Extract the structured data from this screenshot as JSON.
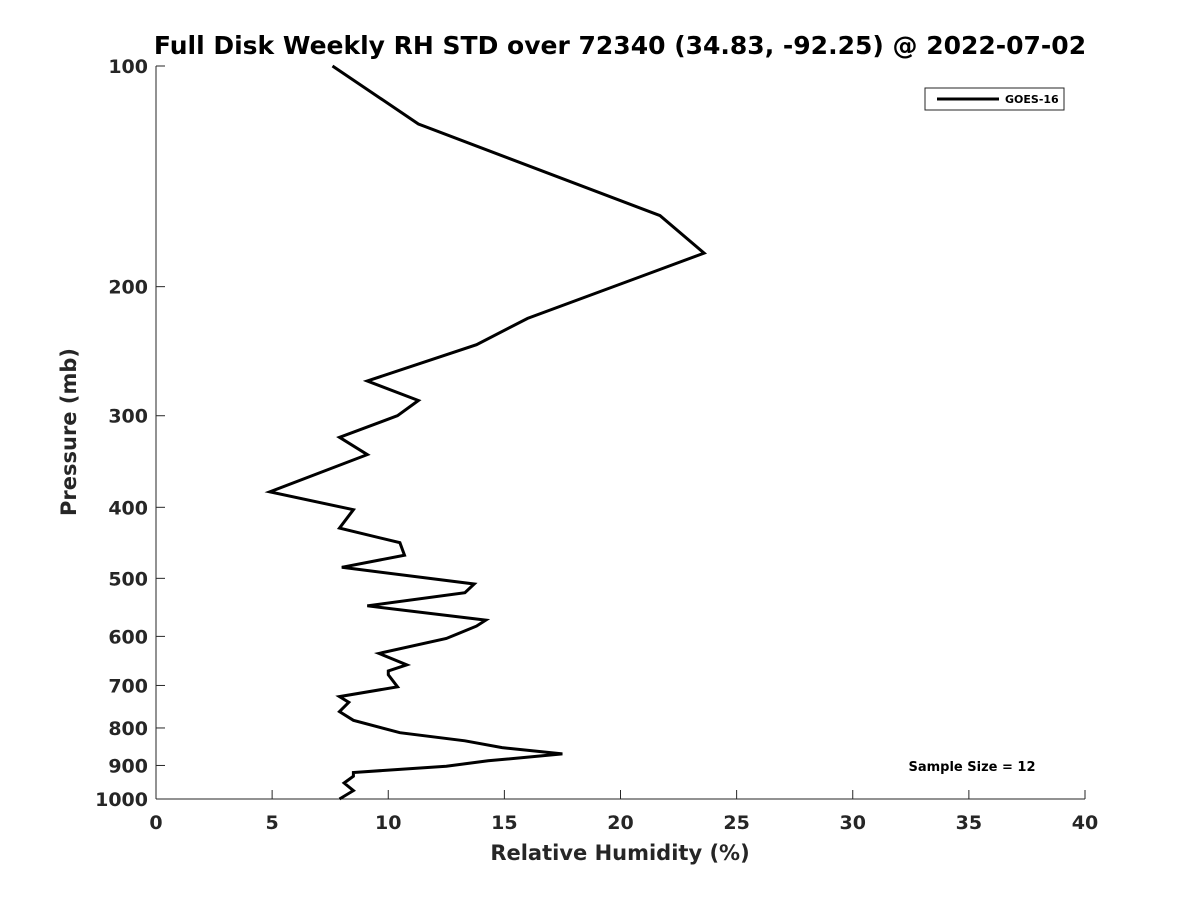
{
  "chart_data": {
    "type": "line",
    "title": "Full Disk Weekly RH STD over 72340 (34.83, -92.25) @ 2022-07-02",
    "xlabel": "Relative Humidity (%)",
    "ylabel": "Pressure (mb)",
    "xlim": [
      0,
      40
    ],
    "ylim": [
      100,
      1000
    ],
    "yscale": "log",
    "y_reversed": true,
    "grid": false,
    "legend_position": "top-right",
    "xticks": [
      0,
      5,
      10,
      15,
      20,
      25,
      30,
      35,
      40
    ],
    "yticks": [
      100,
      200,
      300,
      400,
      500,
      600,
      700,
      800,
      900,
      1000
    ],
    "series": [
      {
        "name": "GOES-16",
        "color": "#000000",
        "points": [
          [
            7.6,
            100
          ],
          [
            11.3,
            120
          ],
          [
            21.7,
            160
          ],
          [
            23.6,
            180
          ],
          [
            16.0,
            221
          ],
          [
            13.8,
            240
          ],
          [
            9.1,
            269
          ],
          [
            11.3,
            286
          ],
          [
            10.4,
            300
          ],
          [
            7.9,
            321
          ],
          [
            9.1,
            339
          ],
          [
            4.9,
            381
          ],
          [
            8.5,
            403
          ],
          [
            7.9,
            427
          ],
          [
            10.5,
            447
          ],
          [
            10.7,
            465
          ],
          [
            8.0,
            483
          ],
          [
            13.7,
            509
          ],
          [
            13.3,
            523
          ],
          [
            9.1,
            545
          ],
          [
            14.2,
            570
          ],
          [
            13.8,
            581
          ],
          [
            12.5,
            604
          ],
          [
            9.6,
            633
          ],
          [
            10.8,
            656
          ],
          [
            10.0,
            669
          ],
          [
            10.0,
            677
          ],
          [
            10.4,
            703
          ],
          [
            7.9,
            725
          ],
          [
            8.3,
            738
          ],
          [
            7.9,
            760
          ],
          [
            8.5,
            781
          ],
          [
            10.5,
            812
          ],
          [
            13.3,
            833
          ],
          [
            14.9,
            851
          ],
          [
            17.5,
            868
          ],
          [
            14.3,
            887
          ],
          [
            12.5,
            902
          ],
          [
            8.5,
            920
          ],
          [
            8.5,
            931
          ],
          [
            8.1,
            951
          ],
          [
            8.5,
            974
          ],
          [
            7.9,
            1000
          ]
        ]
      }
    ],
    "annotations": [
      "Sample Size = 12"
    ]
  }
}
